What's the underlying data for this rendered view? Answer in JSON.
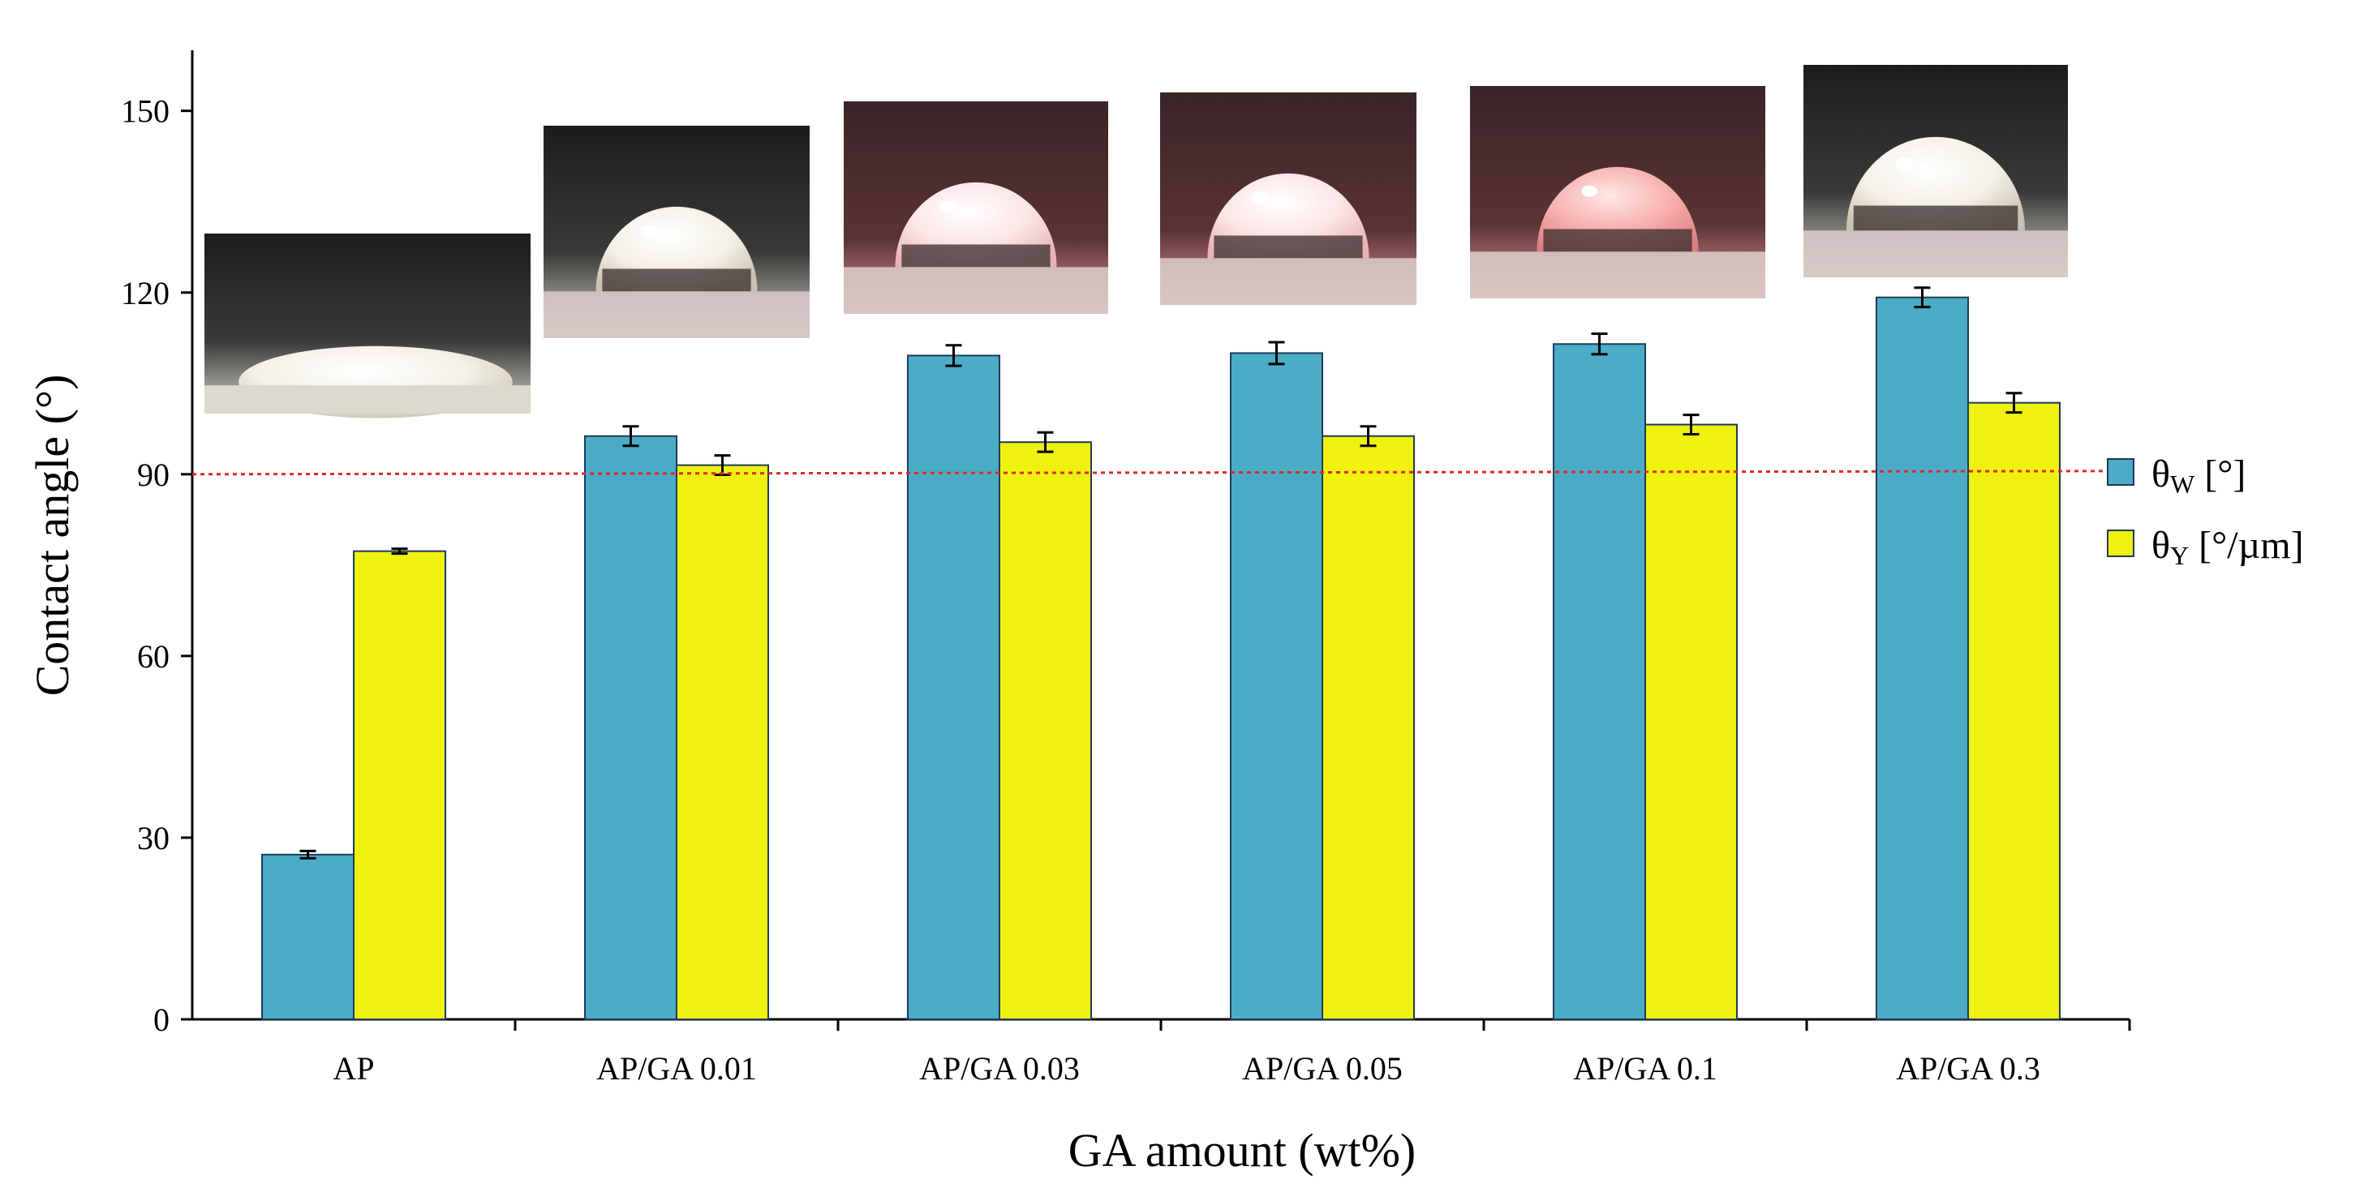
{
  "chart_data": {
    "type": "bar",
    "title": "",
    "xlabel": "GA amount (wt%)",
    "ylabel": "Contact angle (°)",
    "ylim": [
      0,
      160
    ],
    "yticks": [
      0,
      30,
      60,
      90,
      120,
      150
    ],
    "grid": false,
    "categories": [
      "AP",
      "AP/GA 0.01",
      "AP/GA 0.03",
      "AP/GA 0.05",
      "AP/GA 0.1",
      "AP/GA 0.3"
    ],
    "series": [
      {
        "name": "θW [°]",
        "symbol": "θ",
        "subscript": "W",
        "unit": " [°]",
        "color": "#4BACC6",
        "values": [
          27.2,
          96.3,
          109.6,
          110.0,
          111.5,
          119.2
        ],
        "errors": [
          0.6,
          1.6,
          1.7,
          1.8,
          1.7,
          1.6
        ]
      },
      {
        "name": "θY [°/µm]",
        "symbol": "θ",
        "subscript": "Y",
        "unit": " [°/µm]",
        "color": "#EEF20E",
        "values": [
          77.3,
          91.5,
          95.3,
          96.3,
          98.2,
          101.8
        ],
        "errors": [
          0.4,
          1.6,
          1.6,
          1.6,
          1.6,
          1.6
        ]
      }
    ],
    "reference_line": {
      "value": 90,
      "color": "#E0282A",
      "style": "dotted"
    },
    "legend_position": "right",
    "insets": [
      "droplet-photo",
      "droplet-photo",
      "droplet-photo",
      "droplet-photo",
      "droplet-photo",
      "droplet-photo"
    ]
  }
}
